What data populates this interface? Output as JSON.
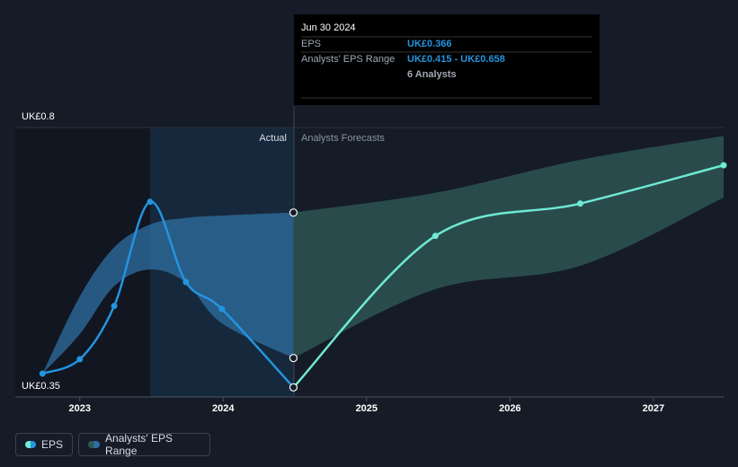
{
  "chart_data": {
    "type": "line",
    "x": [
      2022.74,
      2023.0,
      2023.24,
      2023.49,
      2023.74,
      2023.99,
      2024.49,
      2025.48,
      2026.49,
      2027.49
    ],
    "actual_count": 7,
    "series": [
      {
        "name": "EPS",
        "color": "#2394df",
        "forecast_color": "#6ee9d5",
        "values": [
          0.389,
          0.413,
          0.502,
          0.676,
          0.542,
          0.497,
          0.366,
          0.619,
          0.673,
          0.737
        ]
      },
      {
        "name": "Analysts' EPS Range",
        "color": "#2f6fa3",
        "forecast_color": "#2f5856",
        "low": [
          0.389,
          0.455,
          0.535,
          0.563,
          0.541,
          0.473,
          0.415,
          0.53,
          0.569,
          0.683
        ],
        "high": [
          0.389,
          0.518,
          0.6,
          0.638,
          0.649,
          0.653,
          0.658,
          0.691,
          0.746,
          0.786
        ]
      }
    ],
    "xlim": [
      2022.55,
      2027.49
    ],
    "xticks": [
      2023,
      2024,
      2025,
      2026,
      2027
    ],
    "ylim": [
      0.35,
      0.8
    ],
    "yticks": [
      {
        "value": 0.35,
        "label": "UK£0.35"
      },
      {
        "value": 0.8,
        "label": "UK£0.8"
      }
    ],
    "grid": true,
    "actual_label": "Actual",
    "forecast_label": "Analysts Forecasts",
    "tooltip": {
      "date": "Jun 30 2024",
      "eps_label": "EPS",
      "eps_value": "UK£0.366",
      "range_label": "Analysts' EPS Range",
      "range_value": "UK£0.415 - UK£0.658",
      "analysts": "6 Analysts"
    }
  }
}
